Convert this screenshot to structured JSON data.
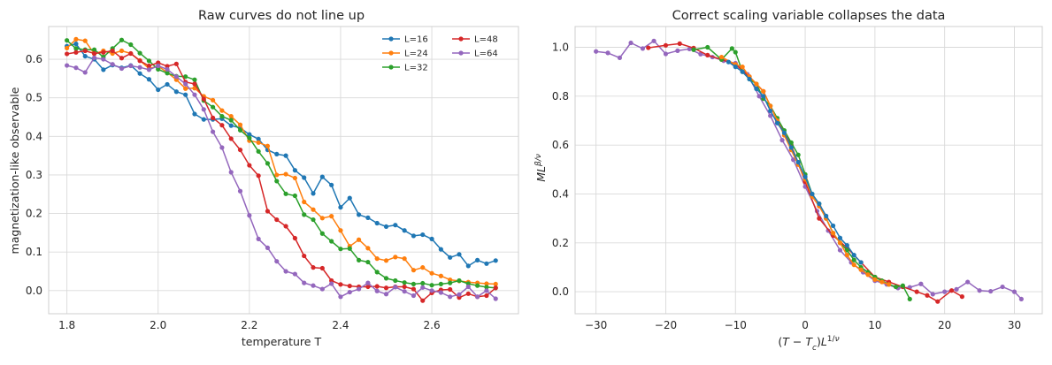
{
  "colors": {
    "L=16": "#1f77b4",
    "L=24": "#ff7f0e",
    "L=32": "#2ca02c",
    "L=48": "#d62728",
    "L=64": "#9467bd"
  },
  "chart_data": [
    {
      "type": "line",
      "title": "Raw curves do not line up",
      "xlabel": "temperature T",
      "ylabel": "magnetization-like observable",
      "xlim": [
        1.76,
        2.79
      ],
      "ylim": [
        -0.06,
        0.685
      ],
      "xticks": [
        "1.8",
        "2.0",
        "2.2",
        "2.4",
        "2.6"
      ],
      "yticks": [
        "0.0",
        "0.1",
        "0.2",
        "0.3",
        "0.4",
        "0.5",
        "0.6"
      ],
      "grid": true,
      "legend": "top-right",
      "legend_entries": [
        "L=16",
        "L=24",
        "L=32",
        "L=48",
        "L=64"
      ],
      "x": [
        1.8,
        1.82,
        1.84,
        1.86,
        1.88,
        1.9,
        1.92,
        1.94,
        1.96,
        1.98,
        2.0,
        2.02,
        2.04,
        2.06,
        2.08,
        2.1,
        2.12,
        2.14,
        2.16,
        2.18,
        2.2,
        2.22,
        2.24,
        2.26,
        2.28,
        2.3,
        2.32,
        2.34,
        2.36,
        2.38,
        2.4,
        2.42,
        2.44,
        2.46,
        2.48,
        2.5,
        2.52,
        2.54,
        2.56,
        2.58,
        2.6,
        2.62,
        2.64,
        2.66,
        2.68,
        2.7,
        2.72,
        2.74
      ],
      "series": [
        {
          "name": "L=16",
          "values": [
            0.634,
            0.64,
            0.608,
            0.6,
            0.573,
            0.585,
            0.578,
            0.584,
            0.563,
            0.548,
            0.521,
            0.535,
            0.516,
            0.508,
            0.458,
            0.444,
            0.444,
            0.446,
            0.428,
            0.422,
            0.405,
            0.393,
            0.365,
            0.354,
            0.35,
            0.312,
            0.293,
            0.252,
            0.295,
            0.274,
            0.216,
            0.24,
            0.197,
            0.189,
            0.175,
            0.166,
            0.17,
            0.156,
            0.142,
            0.145,
            0.134,
            0.107,
            0.086,
            0.094,
            0.064,
            0.079,
            0.07,
            0.078
          ]
        },
        {
          "name": "L=24",
          "values": [
            0.629,
            0.652,
            0.648,
            0.614,
            0.622,
            0.615,
            0.622,
            0.615,
            0.597,
            0.576,
            0.582,
            0.566,
            0.547,
            0.524,
            0.525,
            0.504,
            0.494,
            0.467,
            0.452,
            0.43,
            0.389,
            0.384,
            0.375,
            0.3,
            0.302,
            0.292,
            0.23,
            0.21,
            0.188,
            0.193,
            0.156,
            0.115,
            0.132,
            0.11,
            0.083,
            0.078,
            0.087,
            0.083,
            0.053,
            0.06,
            0.045,
            0.038,
            0.028,
            0.025,
            0.022,
            0.02,
            0.018,
            0.017
          ]
        },
        {
          "name": "L=32",
          "values": [
            0.649,
            0.628,
            0.625,
            0.625,
            0.606,
            0.628,
            0.65,
            0.638,
            0.616,
            0.596,
            0.574,
            0.564,
            0.556,
            0.555,
            0.547,
            0.493,
            0.476,
            0.452,
            0.442,
            0.416,
            0.396,
            0.361,
            0.33,
            0.284,
            0.251,
            0.246,
            0.197,
            0.184,
            0.148,
            0.128,
            0.108,
            0.109,
            0.079,
            0.074,
            0.048,
            0.032,
            0.026,
            0.021,
            0.017,
            0.019,
            0.014,
            0.017,
            0.02,
            0.026,
            0.018,
            0.013,
            0.009,
            0.007
          ]
        },
        {
          "name": "L=48",
          "values": [
            0.614,
            0.618,
            0.622,
            0.615,
            0.618,
            0.622,
            0.603,
            0.615,
            0.596,
            0.583,
            0.591,
            0.582,
            0.588,
            0.541,
            0.536,
            0.497,
            0.448,
            0.429,
            0.394,
            0.365,
            0.325,
            0.298,
            0.206,
            0.184,
            0.167,
            0.136,
            0.09,
            0.06,
            0.058,
            0.026,
            0.016,
            0.012,
            0.01,
            0.01,
            0.011,
            0.007,
            0.01,
            0.01,
            0.004,
            -0.026,
            -0.006,
            0.002,
            0.003,
            -0.018,
            -0.008,
            -0.016,
            -0.013,
            0.007
          ]
        },
        {
          "name": "L=64",
          "values": [
            0.584,
            0.578,
            0.566,
            0.604,
            0.6,
            0.587,
            0.576,
            0.583,
            0.579,
            0.573,
            0.583,
            0.574,
            0.555,
            0.536,
            0.508,
            0.47,
            0.412,
            0.371,
            0.307,
            0.258,
            0.195,
            0.134,
            0.111,
            0.076,
            0.05,
            0.043,
            0.02,
            0.013,
            0.004,
            0.018,
            -0.016,
            -0.004,
            0.004,
            0.02,
            -0.001,
            -0.009,
            0.009,
            -0.002,
            -0.013,
            0.008,
            0.0,
            -0.005,
            -0.016,
            -0.01,
            0.01,
            -0.016,
            0.0,
            -0.021
          ]
        }
      ]
    },
    {
      "type": "scatter",
      "title": "Correct scaling variable collapses the data",
      "xlabel": "(T − T_c)L^{1/ν}",
      "ylabel": "ML^{β/ν}",
      "xlim": [
        -33,
        34
      ],
      "ylim": [
        -0.09,
        1.085
      ],
      "xticks": [
        "−30",
        "−20",
        "−10",
        "0",
        "10",
        "20",
        "30"
      ],
      "yticks": [
        "0.0",
        "0.2",
        "0.4",
        "0.6",
        "0.8",
        "1.0"
      ],
      "grid": true,
      "legend": "none",
      "series": [
        {
          "name": "L=64",
          "x": [
            -30.0,
            -28.3,
            -26.6,
            -25.0,
            -23.3,
            -21.7,
            -20.0,
            -18.3,
            -16.6,
            -15.0,
            -13.3,
            -11.7,
            -10.0,
            -8.3,
            -6.6,
            -5.0,
            -3.3,
            -1.7,
            0.0,
            1.7,
            3.3,
            5.0,
            6.6,
            8.3,
            10.0,
            11.7,
            13.3,
            15.0,
            16.6,
            18.3,
            20.0,
            21.7,
            23.3,
            25.0,
            26.6,
            28.3,
            30.0,
            31.0
          ],
          "values": [
            0.983,
            0.977,
            0.957,
            1.018,
            0.995,
            1.026,
            0.973,
            0.986,
            0.993,
            0.972,
            0.96,
            0.945,
            0.935,
            0.89,
            0.8,
            0.72,
            0.62,
            0.54,
            0.43,
            0.33,
            0.25,
            0.17,
            0.12,
            0.08,
            0.045,
            0.03,
            0.015,
            0.018,
            0.032,
            -0.01,
            0.0,
            0.01,
            0.04,
            0.005,
            0.002,
            0.02,
            0.0,
            -0.03
          ]
        },
        {
          "name": "L=48",
          "x": [
            -22.5,
            -20.0,
            -18.0,
            -16.0,
            -14.0,
            -12.0,
            -10.0,
            -8.0,
            -6.0,
            -4.0,
            -2.0,
            0.0,
            2.0,
            4.0,
            6.0,
            8.0,
            10.0,
            12.0,
            14.0,
            16.0,
            17.5,
            19.0,
            21.0,
            22.5
          ],
          "values": [
            0.998,
            1.008,
            1.015,
            0.997,
            0.968,
            0.95,
            0.93,
            0.88,
            0.82,
            0.7,
            0.6,
            0.45,
            0.3,
            0.23,
            0.18,
            0.12,
            0.06,
            0.04,
            0.02,
            0.0,
            -0.015,
            -0.04,
            0.005,
            -0.02
          ]
        },
        {
          "name": "L=32",
          "x": [
            -16.0,
            -14.0,
            -12.0,
            -10.5,
            -10.0,
            -9.0,
            -8.0,
            -7.0,
            -6.0,
            -5.0,
            -4.0,
            -3.0,
            -2.0,
            -1.0,
            0.0,
            1.0,
            2.0,
            3.0,
            4.0,
            5.0,
            6.0,
            7.0,
            8.0,
            9.0,
            10.0,
            11.0,
            12.0,
            13.0,
            14.0,
            15.0
          ],
          "values": [
            0.99,
            1.0,
            0.95,
            0.995,
            0.98,
            0.9,
            0.87,
            0.85,
            0.79,
            0.76,
            0.71,
            0.66,
            0.61,
            0.56,
            0.48,
            0.4,
            0.36,
            0.3,
            0.24,
            0.2,
            0.17,
            0.13,
            0.1,
            0.08,
            0.06,
            0.045,
            0.03,
            0.02,
            0.025,
            -0.03
          ]
        },
        {
          "name": "L=24",
          "x": [
            -12.0,
            -10.0,
            -9.0,
            -8.0,
            -7.0,
            -6.0,
            -5.0,
            -4.0,
            -3.0,
            -2.0,
            -1.0,
            0.0,
            1.0,
            2.0,
            3.0,
            4.0,
            5.0,
            6.0,
            7.0,
            8.0,
            9.0,
            10.0,
            11.0,
            12.0
          ],
          "values": [
            0.96,
            0.93,
            0.92,
            0.88,
            0.85,
            0.82,
            0.76,
            0.7,
            0.64,
            0.58,
            0.52,
            0.46,
            0.39,
            0.35,
            0.3,
            0.24,
            0.2,
            0.15,
            0.11,
            0.09,
            0.07,
            0.05,
            0.04,
            0.03
          ]
        },
        {
          "name": "L=16",
          "x": [
            -11.0,
            -10.0,
            -9.0,
            -8.0,
            -7.0,
            -6.0,
            -5.0,
            -4.0,
            -3.0,
            -2.0,
            -1.0,
            0.0,
            1.0,
            2.0,
            3.0,
            4.0,
            5.0,
            6.0,
            7.0,
            8.0
          ],
          "values": [
            0.94,
            0.92,
            0.9,
            0.87,
            0.83,
            0.8,
            0.74,
            0.69,
            0.65,
            0.59,
            0.53,
            0.47,
            0.4,
            0.36,
            0.31,
            0.27,
            0.22,
            0.19,
            0.15,
            0.12
          ]
        }
      ]
    }
  ]
}
